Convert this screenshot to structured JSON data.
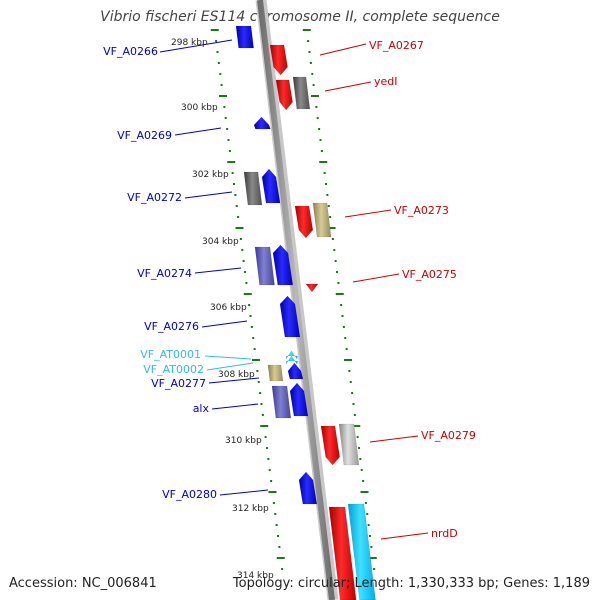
{
  "title": "Vibrio fischeri ES114 chromosome II, complete sequence",
  "footer": {
    "accession": "Accession: NC_006841",
    "summary": "Topology: circular; Length: 1,330,333 bp; Genes: 1,189"
  },
  "colors": {
    "forward_gene": "#0000ee",
    "reverse_gene": "#ee0000",
    "pseudo_gene": "#666666",
    "trna": "#33bbee",
    "tick": "#1a7a1a",
    "backbone": "#8c8c8c"
  },
  "scale_labels": [
    "298 kbp",
    "300 kbp",
    "302 kbp",
    "304 kbp",
    "306 kbp",
    "308 kbp",
    "310 kbp",
    "312 kbp",
    "314 kbp"
  ],
  "gene_labels_left": [
    "VF_A0266",
    "VF_A0269",
    "VF_A0272",
    "VF_A0274",
    "VF_A0276",
    "VF_AT0001",
    "VF_AT0002",
    "VF_A0277",
    "alx",
    "VF_A0280"
  ],
  "gene_labels_right": [
    "VF_A0267",
    "yedI",
    "VF_A0273",
    "VF_A0275",
    "VF_A0279",
    "nrdD"
  ]
}
